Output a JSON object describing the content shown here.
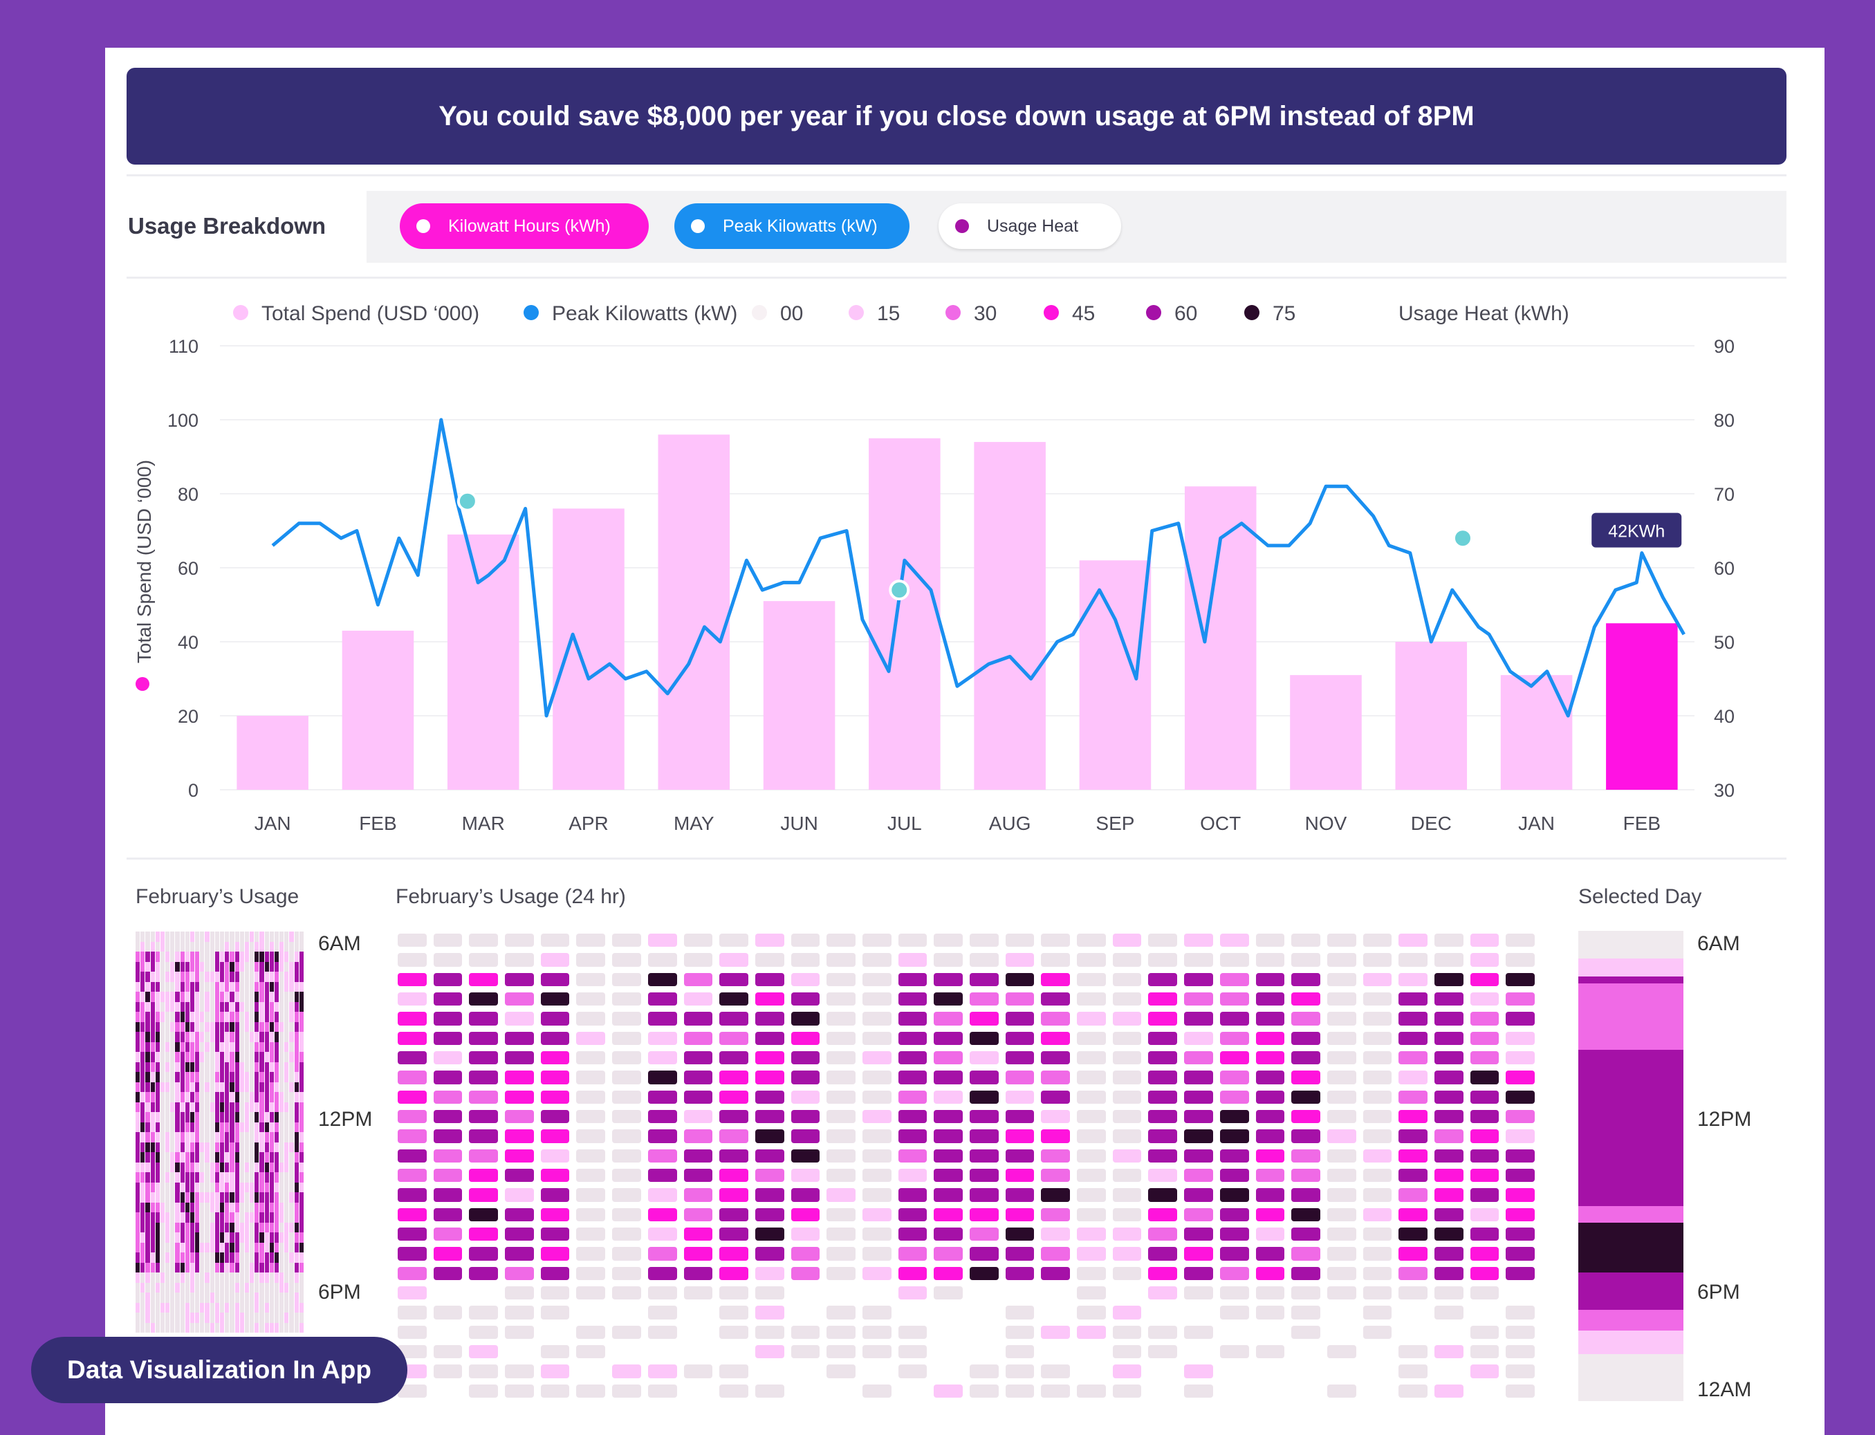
{
  "banner": {
    "text": "You could save $8,000 per year if you close down usage at 6PM instead of 8PM"
  },
  "toolbar": {
    "title": "Usage Breakdown",
    "pills": [
      {
        "label": "Kilowatt Hours (kWh)",
        "color": "#ff18d9"
      },
      {
        "label": "Peak Kilowatts (kW)",
        "color": "#1a8ff0"
      },
      {
        "label": "Usage Heat",
        "color": "#a512a5"
      }
    ]
  },
  "colors": {
    "bar": "#fec3fb",
    "bar_highlight": "#ff12e3",
    "line": "#1a8ff0",
    "marker": "#6ad0d6",
    "heat": [
      "#f7f1f4",
      "#fcc6f9",
      "#f06ae6",
      "#ff14dc",
      "#a511a7",
      "#2a0a2a"
    ]
  },
  "chart_data": {
    "type": "bar+line",
    "title": "",
    "legend": [
      {
        "label": "Total Spend (USD ‘000)",
        "color": "#fec3fb"
      },
      {
        "label": "Peak Kilowatts (kW)",
        "color": "#1a8ff0"
      },
      {
        "label": "00",
        "color": "#f7f1f4"
      },
      {
        "label": "15",
        "color": "#fcc6f9"
      },
      {
        "label": "30",
        "color": "#f06ae6"
      },
      {
        "label": "45",
        "color": "#ff14dc"
      },
      {
        "label": "60",
        "color": "#a511a7"
      },
      {
        "label": "75",
        "color": "#2a0a2a"
      }
    ],
    "legend_suffix": "Usage Heat (kWh)",
    "categories": [
      "JAN",
      "FEB",
      "MAR",
      "APR",
      "MAY",
      "JUN",
      "JUL",
      "AUG",
      "SEP",
      "OCT",
      "NOV",
      "DEC",
      "JAN",
      "FEB"
    ],
    "ylabel": "Total Spend (USD ‘000)",
    "y_left": {
      "range": [
        0,
        120
      ],
      "ticks": [
        0,
        20,
        40,
        60,
        80,
        100,
        110
      ]
    },
    "y_right": {
      "range": [
        30,
        90
      ],
      "ticks": [
        30,
        40,
        50,
        60,
        70,
        80,
        90
      ]
    },
    "bars": {
      "name": "Total Spend (USD ‘000)",
      "values": [
        20,
        43,
        69,
        76,
        96,
        51,
        95,
        94,
        62,
        82,
        31,
        40,
        31,
        45
      ],
      "highlight_index": 13
    },
    "line": {
      "name": "Peak Kilowatts (kW)",
      "axis": "right",
      "x": [
        0.0,
        0.25,
        0.45,
        0.65,
        0.8,
        1.0,
        1.2,
        1.38,
        1.6,
        1.75,
        1.95,
        2.05,
        2.2,
        2.4,
        2.6,
        2.85,
        3.0,
        3.2,
        3.35,
        3.55,
        3.75,
        3.95,
        4.1,
        4.25,
        4.5,
        4.65,
        4.85,
        5.0,
        5.2,
        5.45,
        5.6,
        5.85,
        6.0,
        6.25,
        6.5,
        6.8,
        7.0,
        7.2,
        7.45,
        7.6,
        7.85,
        8.0,
        8.2,
        8.35,
        8.6,
        8.85,
        9.0,
        9.2,
        9.45,
        9.65,
        9.85,
        10.0,
        10.2,
        10.45,
        10.6,
        10.8,
        11.0,
        11.2,
        11.45,
        11.55,
        11.75,
        11.95,
        12.1,
        12.3,
        12.55,
        12.75,
        12.95,
        13.0,
        13.2,
        13.4
      ],
      "values": [
        63,
        66,
        66,
        64,
        65,
        55,
        64,
        59,
        80,
        69,
        58,
        59,
        61,
        68,
        40,
        51,
        45,
        47,
        45,
        46,
        43,
        47,
        52,
        50,
        61,
        57,
        58,
        58,
        64,
        65,
        53,
        46,
        61,
        57,
        44,
        47,
        48,
        45,
        50,
        51,
        57,
        53,
        45,
        65,
        66,
        50,
        64,
        66,
        63,
        63,
        66,
        71,
        71,
        67,
        63,
        62,
        50,
        57,
        52,
        51,
        46,
        44,
        46,
        40,
        52,
        57,
        58,
        62,
        56,
        51
      ],
      "markers": [
        {
          "x": 1.85,
          "value": 69
        },
        {
          "x": 5.95,
          "value": 57
        },
        {
          "x": 11.3,
          "value": 64
        }
      ],
      "callout": {
        "x": 12.95,
        "value": 62,
        "label": "42KWh"
      }
    }
  },
  "heatmap": {
    "left_title": "February’s Usage",
    "center_title": "February’s Usage (24 hr)",
    "right_title": "Selected Day",
    "time_labels": [
      "6AM",
      "12PM",
      "6PM"
    ],
    "right_time_labels": [
      "6AM",
      "12PM",
      "6PM",
      "12AM"
    ],
    "rows": 24,
    "cols": 32,
    "selected_day_levels": [
      0,
      1,
      4,
      2,
      4,
      4,
      4,
      2,
      5,
      4,
      4,
      2,
      1,
      0,
      0
    ]
  },
  "badge": {
    "text": "Data Visualization In App"
  }
}
